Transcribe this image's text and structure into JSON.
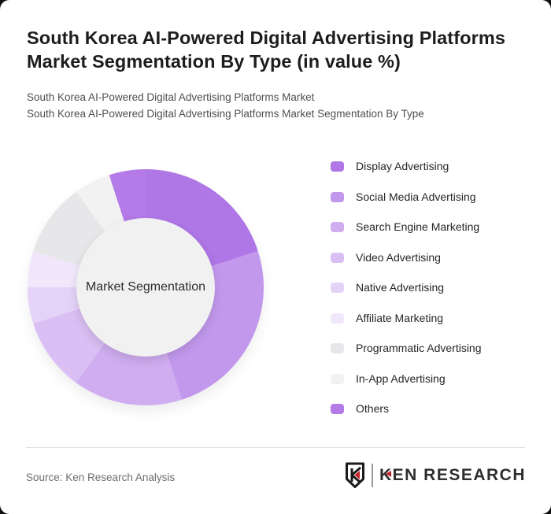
{
  "page": {
    "outer_background": "#101010",
    "card_background": "#ffffff"
  },
  "header": {
    "title": "South Korea AI-Powered Digital Advertising Platforms Market Segmentation By Type (in value %)",
    "subtitle_line1": "South Korea AI-Powered Digital Advertising Platforms Market",
    "subtitle_line2": "South Korea AI-Powered Digital Advertising Platforms Market Segmentation By Type"
  },
  "chart_data": {
    "type": "pie",
    "variant": "donut",
    "title": "South Korea AI-Powered Digital Advertising Platforms Market Segmentation By Type (in value %)",
    "center_label": "Market Segmentation",
    "legend_position": "right",
    "start_angle_deg": 0,
    "direction": "clockwise",
    "unit": "percent of value",
    "segments": [
      {
        "label": "Display Advertising",
        "value": 20,
        "color": "#af76e6"
      },
      {
        "label": "Social Media Advertising",
        "value": 25,
        "color": "#c298ec"
      },
      {
        "label": "Search Engine Marketing",
        "value": 15,
        "color": "#cfadf0"
      },
      {
        "label": "Video Advertising",
        "value": 10,
        "color": "#d9bff3"
      },
      {
        "label": "Native Advertising",
        "value": 5,
        "color": "#e4d2f7"
      },
      {
        "label": "Affiliate Marketing",
        "value": 5,
        "color": "#f0e7fb"
      },
      {
        "label": "Programmatic Advertising",
        "value": 10,
        "color": "#e7e7e9"
      },
      {
        "label": "In-App Advertising",
        "value": 5,
        "color": "#f2f2f3"
      },
      {
        "label": "Others",
        "value": 5,
        "color": "#b37ae8"
      }
    ]
  },
  "footer": {
    "source": "Source: Ken Research Analysis",
    "logo": {
      "icon": "ken-research-shield-icon",
      "brand_first_letter": "K",
      "brand_rest": "EN RESEARCH",
      "accent_color": "#c22026",
      "text_color": "#2e2e2e"
    }
  }
}
